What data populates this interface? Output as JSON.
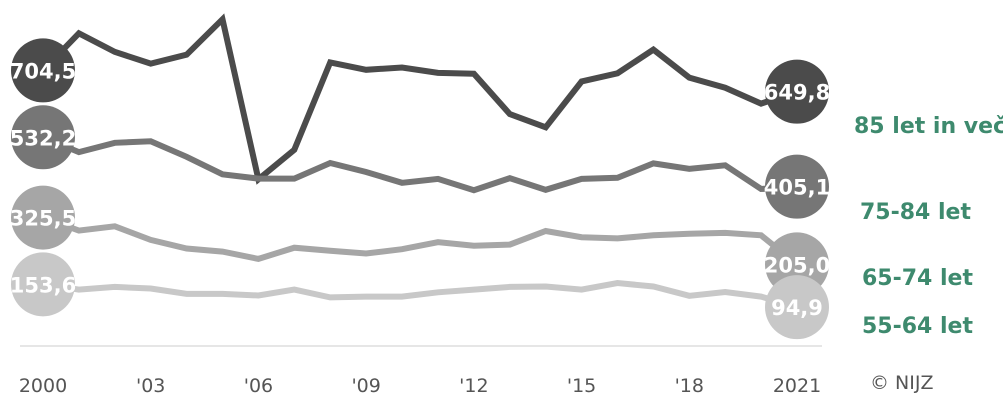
{
  "chart_data": {
    "type": "line",
    "x": [
      2000,
      2001,
      2002,
      2003,
      2004,
      2005,
      2006,
      2007,
      2008,
      2009,
      2010,
      2011,
      2012,
      2013,
      2014,
      2015,
      2016,
      2017,
      2018,
      2019,
      2020,
      2021
    ],
    "x_tick_labels": [
      {
        "x": 2000,
        "label": "2000"
      },
      {
        "x": 2003,
        "label": "'03"
      },
      {
        "x": 2006,
        "label": "'06"
      },
      {
        "x": 2009,
        "label": "'09"
      },
      {
        "x": 2012,
        "label": "'12"
      },
      {
        "x": 2015,
        "label": "'15"
      },
      {
        "x": 2018,
        "label": "'18"
      },
      {
        "x": 2021,
        "label": "2021"
      }
    ],
    "ylim": [
      0,
      860
    ],
    "grid": false,
    "baseline": true,
    "series": [
      {
        "name": "85 let in več",
        "color": "#4b4b4b",
        "bubble_color": "#4b4b4b",
        "start_label": "704,5",
        "end_label": "649,8",
        "values": [
          704.5,
          800,
          752,
          722,
          745,
          836,
          424,
          500,
          725,
          706,
          712,
          698,
          696,
          592,
          558,
          676,
          697,
          758,
          686,
          660,
          619,
          649.8
        ]
      },
      {
        "name": "75-84 let",
        "color": "#767676",
        "bubble_color": "#767676",
        "start_label": "532,2",
        "end_label": "405,1",
        "values": [
          532.2,
          494,
          518,
          522,
          482,
          437,
          426,
          426,
          466,
          443,
          415,
          425,
          396,
          427,
          397,
          425,
          428,
          465,
          451,
          460,
          399,
          405.1
        ]
      },
      {
        "name": "65-74 let",
        "color": "#a6a6a6",
        "bubble_color": "#a6a6a6",
        "start_label": "325,5",
        "end_label": "205,0",
        "values": [
          325.5,
          292,
          303,
          268,
          246,
          238,
          219,
          248,
          240,
          233,
          244,
          262,
          253,
          256,
          291,
          275,
          272,
          280,
          284,
          286,
          280,
          205.0
        ]
      },
      {
        "name": "55-64 let",
        "color": "#c8c8c8",
        "bubble_color": "#c8c8c8",
        "start_label": "153,6",
        "end_label": "94,9",
        "values": [
          153.6,
          140,
          147,
          143,
          129,
          129,
          125,
          140,
          120,
          122,
          122,
          133,
          140,
          147,
          148,
          140,
          157,
          148,
          124,
          134,
          122,
          94.9
        ]
      }
    ],
    "label_color": "#3e8a6e",
    "axis_color": "#dddddd",
    "tick_color": "#555555",
    "value_label_color": "#ffffff"
  },
  "credit": {
    "symbol": "©",
    "text": "NIJZ"
  }
}
